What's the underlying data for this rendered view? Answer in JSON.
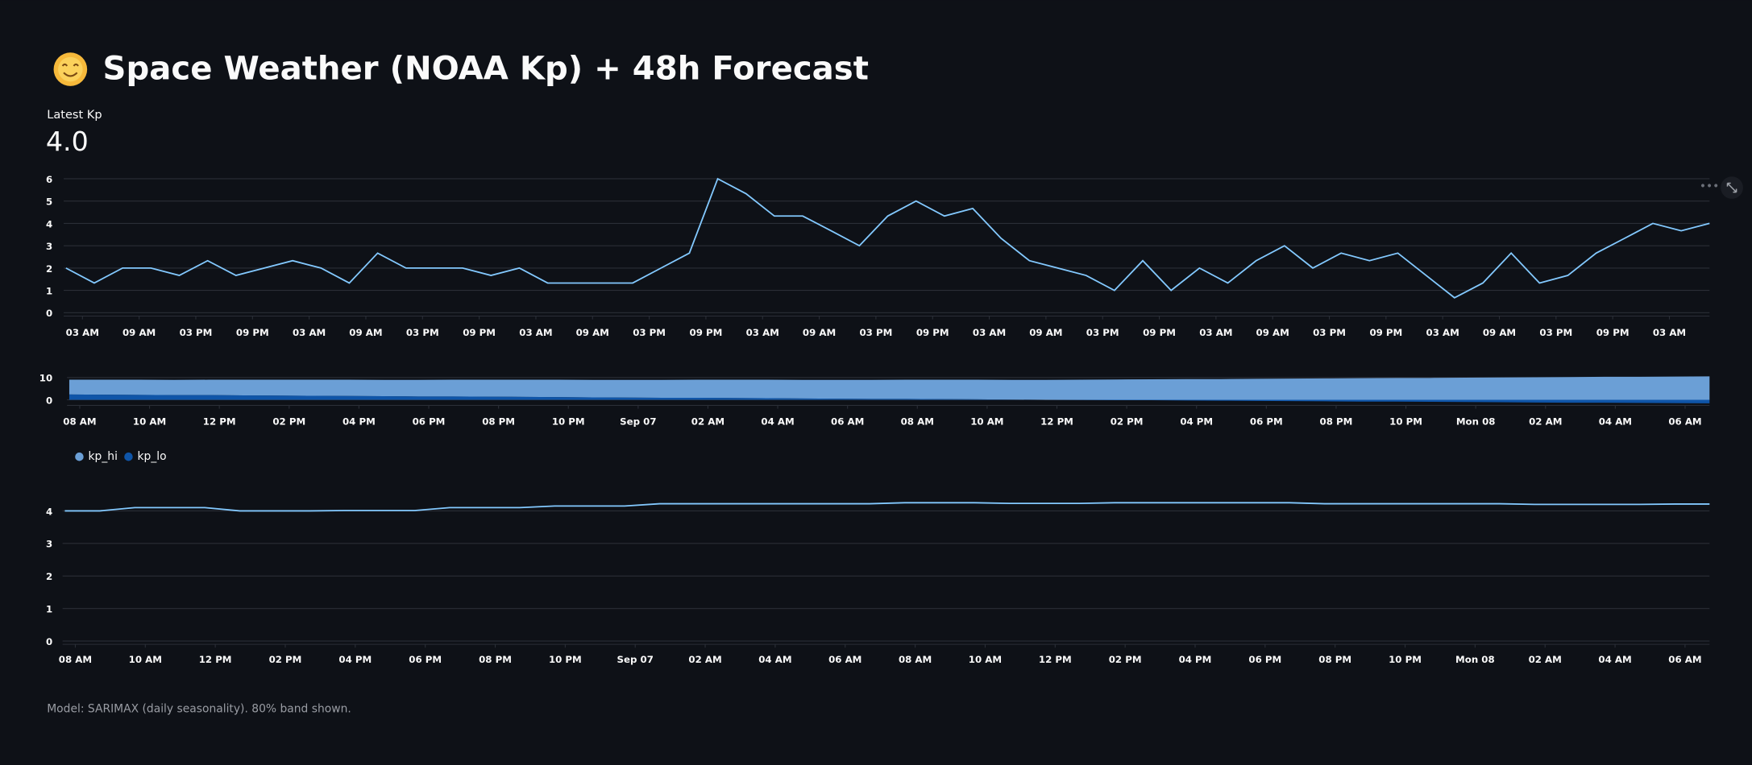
{
  "header": {
    "title": "Space Weather (NOAA Kp) + 48h Forecast"
  },
  "metric": {
    "label": "Latest Kp",
    "value": "4.0"
  },
  "caption": "Model: SARIMAX (daily seasonality). 80% band shown.",
  "chart_data": [
    {
      "type": "line",
      "color": "#83c9ff",
      "grid": true,
      "x": [
        0,
        3,
        6,
        9,
        12,
        15,
        18,
        21,
        24,
        27,
        30,
        33,
        36,
        39,
        42,
        45,
        48,
        51,
        54,
        57,
        60,
        63,
        66,
        69,
        72,
        75,
        78,
        81,
        84,
        87,
        90,
        93,
        96,
        99,
        102,
        105,
        108,
        111,
        114,
        117,
        120,
        123,
        126,
        129,
        132,
        135,
        138,
        141,
        144,
        147,
        150,
        153,
        156,
        159,
        162,
        165,
        168,
        171,
        174
      ],
      "values": [
        2.0,
        1.33,
        2.0,
        2.0,
        1.67,
        2.33,
        1.67,
        2.0,
        2.33,
        2.0,
        1.33,
        2.67,
        2.0,
        2.0,
        2.0,
        1.67,
        2.0,
        1.33,
        1.33,
        1.33,
        1.33,
        2.0,
        2.67,
        6.0,
        5.33,
        4.33,
        4.33,
        3.67,
        3.0,
        4.33,
        5.0,
        4.33,
        4.67,
        3.33,
        2.33,
        2.0,
        1.67,
        1.0,
        2.33,
        1.0,
        2.0,
        1.33,
        2.33,
        3.0,
        2.0,
        2.67,
        2.33,
        2.67,
        1.67,
        0.67,
        1.33,
        2.67,
        1.33,
        1.67,
        2.67,
        3.33,
        4.0,
        3.67,
        4.0
      ],
      "xlim": [
        0,
        174
      ],
      "ylim": [
        -0.15,
        6
      ],
      "yticks": [
        0,
        1,
        2,
        3,
        4,
        5,
        6
      ],
      "xticks": [
        {
          "value": 1.75,
          "label": "03 AM"
        },
        {
          "value": 7.75,
          "label": "09 AM"
        },
        {
          "value": 13.75,
          "label": "03 PM"
        },
        {
          "value": 19.75,
          "label": "09 PM"
        },
        {
          "value": 25.75,
          "label": "03 AM"
        },
        {
          "value": 31.75,
          "label": "09 AM"
        },
        {
          "value": 37.75,
          "label": "03 PM"
        },
        {
          "value": 43.75,
          "label": "09 PM"
        },
        {
          "value": 49.75,
          "label": "03 AM"
        },
        {
          "value": 55.75,
          "label": "09 AM"
        },
        {
          "value": 61.75,
          "label": "03 PM"
        },
        {
          "value": 67.75,
          "label": "09 PM"
        },
        {
          "value": 73.75,
          "label": "03 AM"
        },
        {
          "value": 79.75,
          "label": "09 AM"
        },
        {
          "value": 85.75,
          "label": "03 PM"
        },
        {
          "value": 91.75,
          "label": "09 PM"
        },
        {
          "value": 97.75,
          "label": "03 AM"
        },
        {
          "value": 103.75,
          "label": "09 AM"
        },
        {
          "value": 109.75,
          "label": "03 PM"
        },
        {
          "value": 115.75,
          "label": "09 PM"
        },
        {
          "value": 121.75,
          "label": "03 AM"
        },
        {
          "value": 127.75,
          "label": "09 AM"
        },
        {
          "value": 133.75,
          "label": "03 PM"
        },
        {
          "value": 139.75,
          "label": "09 PM"
        },
        {
          "value": 145.75,
          "label": "03 AM"
        },
        {
          "value": 151.75,
          "label": "09 AM"
        },
        {
          "value": 157.75,
          "label": "03 PM"
        },
        {
          "value": 163.75,
          "label": "09 PM"
        },
        {
          "value": 169.75,
          "label": "03 AM"
        }
      ]
    },
    {
      "type": "area",
      "stacked": true,
      "grid": true,
      "x": [
        0,
        1,
        2,
        3,
        4,
        5,
        6,
        7,
        8,
        9,
        10,
        11,
        12,
        13,
        14,
        15,
        16,
        17,
        18,
        19,
        20,
        21,
        22,
        23,
        24,
        25,
        26,
        27,
        28,
        29,
        30,
        31,
        32,
        33,
        34,
        35,
        36,
        37,
        38,
        39,
        40,
        41,
        42,
        43,
        44,
        45,
        46,
        47
      ],
      "series": [
        {
          "name": "kp_hi",
          "color": "#6b9fd6",
          "values": [
            6.6,
            6.7,
            6.8,
            6.8,
            6.9,
            7.0,
            7.1,
            7.2,
            7.3,
            7.3,
            7.4,
            7.5,
            7.6,
            7.7,
            7.8,
            7.8,
            7.9,
            8.0,
            8.1,
            8.2,
            8.3,
            8.3,
            8.4,
            8.5,
            8.6,
            8.7,
            8.8,
            8.8,
            8.9,
            9.0,
            9.1,
            9.2,
            9.3,
            9.3,
            9.4,
            9.5,
            9.6,
            9.7,
            9.8,
            9.8,
            9.9,
            10.0,
            10.1,
            10.2,
            10.3,
            10.3,
            10.4,
            10.5
          ]
        },
        {
          "name": "kp_lo",
          "color": "#0f55a8",
          "values": [
            2.4,
            2.3,
            2.2,
            2.1,
            2.1,
            2.0,
            1.9,
            1.8,
            1.7,
            1.6,
            1.5,
            1.5,
            1.4,
            1.3,
            1.2,
            1.1,
            1.0,
            0.9,
            0.9,
            0.8,
            0.7,
            0.6,
            0.5,
            0.4,
            0.4,
            0.3,
            0.2,
            0.1,
            0.0,
            -0.1,
            -0.2,
            -0.2,
            -0.3,
            -0.4,
            -0.5,
            -0.6,
            -0.7,
            -0.8,
            -0.8,
            -0.9,
            -1.0,
            -1.1,
            -1.2,
            -1.3,
            -1.3,
            -1.4,
            -1.5,
            -1.6
          ]
        }
      ],
      "xlim": [
        0,
        47
      ],
      "ylim": [
        -2.5,
        11.5
      ],
      "yticks": [
        0,
        10
      ],
      "legend": "bottom-left",
      "xticks": [
        {
          "value": 0.3,
          "label": "08 AM"
        },
        {
          "value": 2.3,
          "label": "10 AM"
        },
        {
          "value": 4.3,
          "label": "12 PM"
        },
        {
          "value": 6.3,
          "label": "02 PM"
        },
        {
          "value": 8.3,
          "label": "04 PM"
        },
        {
          "value": 10.3,
          "label": "06 PM"
        },
        {
          "value": 12.3,
          "label": "08 PM"
        },
        {
          "value": 14.3,
          "label": "10 PM"
        },
        {
          "value": 16.3,
          "label": "Sep 07"
        },
        {
          "value": 18.3,
          "label": "02 AM"
        },
        {
          "value": 20.3,
          "label": "04 AM"
        },
        {
          "value": 22.3,
          "label": "06 AM"
        },
        {
          "value": 24.3,
          "label": "08 AM"
        },
        {
          "value": 26.3,
          "label": "10 AM"
        },
        {
          "value": 28.3,
          "label": "12 PM"
        },
        {
          "value": 30.3,
          "label": "02 PM"
        },
        {
          "value": 32.3,
          "label": "04 PM"
        },
        {
          "value": 34.3,
          "label": "06 PM"
        },
        {
          "value": 36.3,
          "label": "08 PM"
        },
        {
          "value": 38.3,
          "label": "10 PM"
        },
        {
          "value": 40.3,
          "label": "Mon 08"
        },
        {
          "value": 42.3,
          "label": "02 AM"
        },
        {
          "value": 44.3,
          "label": "04 AM"
        },
        {
          "value": 46.3,
          "label": "06 AM"
        }
      ]
    },
    {
      "type": "line",
      "color": "#83c9ff",
      "grid": true,
      "x": [
        0,
        1,
        2,
        3,
        4,
        5,
        6,
        7,
        8,
        9,
        10,
        11,
        12,
        13,
        14,
        15,
        16,
        17,
        18,
        19,
        20,
        21,
        22,
        23,
        24,
        25,
        26,
        27,
        28,
        29,
        30,
        31,
        32,
        33,
        34,
        35,
        36,
        37,
        38,
        39,
        40,
        41,
        42,
        43,
        44,
        45,
        46,
        47
      ],
      "values": [
        4.0,
        4.0,
        4.1,
        4.1,
        4.1,
        4.0,
        4.0,
        4.0,
        4.01,
        4.01,
        4.01,
        4.1,
        4.1,
        4.1,
        4.15,
        4.15,
        4.15,
        4.22,
        4.22,
        4.22,
        4.22,
        4.22,
        4.22,
        4.22,
        4.25,
        4.25,
        4.25,
        4.23,
        4.23,
        4.23,
        4.25,
        4.25,
        4.25,
        4.25,
        4.25,
        4.25,
        4.22,
        4.22,
        4.22,
        4.22,
        4.22,
        4.22,
        4.2,
        4.2,
        4.2,
        4.2,
        4.21,
        4.21
      ],
      "xlim": [
        0,
        47
      ],
      "ylim": [
        -0.1,
        4.6
      ],
      "yticks": [
        0,
        1,
        2,
        3,
        4
      ],
      "xticks": [
        {
          "value": 0.3,
          "label": "08 AM"
        },
        {
          "value": 2.3,
          "label": "10 AM"
        },
        {
          "value": 4.3,
          "label": "12 PM"
        },
        {
          "value": 6.3,
          "label": "02 PM"
        },
        {
          "value": 8.3,
          "label": "04 PM"
        },
        {
          "value": 10.3,
          "label": "06 PM"
        },
        {
          "value": 12.3,
          "label": "08 PM"
        },
        {
          "value": 14.3,
          "label": "10 PM"
        },
        {
          "value": 16.3,
          "label": "Sep 07"
        },
        {
          "value": 18.3,
          "label": "02 AM"
        },
        {
          "value": 20.3,
          "label": "04 AM"
        },
        {
          "value": 22.3,
          "label": "06 AM"
        },
        {
          "value": 24.3,
          "label": "08 AM"
        },
        {
          "value": 26.3,
          "label": "10 AM"
        },
        {
          "value": 28.3,
          "label": "12 PM"
        },
        {
          "value": 30.3,
          "label": "02 PM"
        },
        {
          "value": 32.3,
          "label": "04 PM"
        },
        {
          "value": 34.3,
          "label": "06 PM"
        },
        {
          "value": 36.3,
          "label": "08 PM"
        },
        {
          "value": 38.3,
          "label": "10 PM"
        },
        {
          "value": 40.3,
          "label": "Mon 08"
        },
        {
          "value": 42.3,
          "label": "02 AM"
        },
        {
          "value": 44.3,
          "label": "04 AM"
        },
        {
          "value": 46.3,
          "label": "06 AM"
        }
      ]
    }
  ]
}
